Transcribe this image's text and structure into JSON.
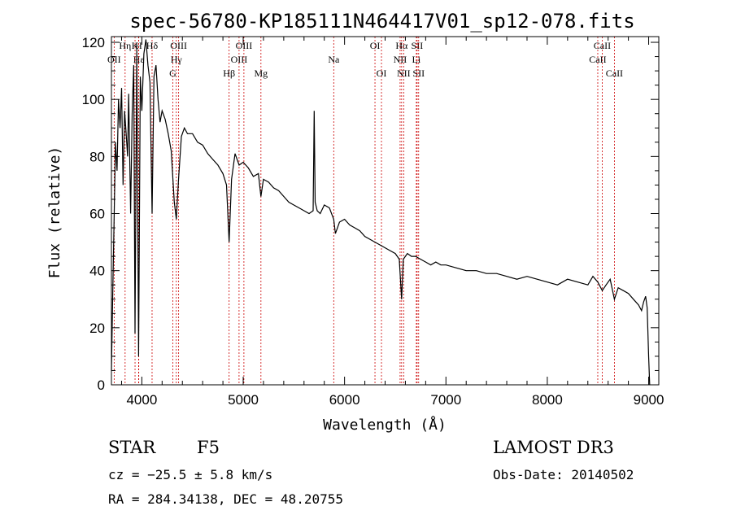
{
  "chart_data": {
    "type": "line",
    "title": "spec-56780-KP185111N464417V01_sp12-078.fits",
    "xlabel": "Wavelength (Å)",
    "ylabel": "Flux (relative)",
    "xlim": [
      3700,
      9100
    ],
    "ylim": [
      0,
      122
    ],
    "x_ticks": [
      4000,
      5000,
      6000,
      7000,
      8000,
      9000
    ],
    "y_ticks": [
      0,
      20,
      40,
      60,
      80,
      100,
      120
    ],
    "series": [
      {
        "name": "flux",
        "x": [
          3700,
          3712,
          3725,
          3740,
          3755,
          3770,
          3785,
          3800,
          3815,
          3830,
          3845,
          3860,
          3870,
          3889,
          3905,
          3920,
          3933,
          3950,
          3968,
          3985,
          4000,
          4020,
          4040,
          4060,
          4080,
          4101,
          4120,
          4140,
          4160,
          4180,
          4200,
          4230,
          4260,
          4290,
          4320,
          4340,
          4360,
          4390,
          4420,
          4450,
          4500,
          4550,
          4600,
          4650,
          4700,
          4750,
          4800,
          4835,
          4861,
          4885,
          4920,
          4960,
          5000,
          5050,
          5100,
          5150,
          5175,
          5200,
          5250,
          5300,
          5350,
          5400,
          5450,
          5500,
          5550,
          5600,
          5650,
          5690,
          5700,
          5710,
          5730,
          5760,
          5800,
          5850,
          5893,
          5910,
          5950,
          6000,
          6050,
          6100,
          6150,
          6200,
          6250,
          6300,
          6350,
          6400,
          6450,
          6500,
          6540,
          6563,
          6580,
          6620,
          6660,
          6700,
          6750,
          6800,
          6850,
          6900,
          6950,
          7000,
          7100,
          7200,
          7300,
          7400,
          7500,
          7600,
          7700,
          7800,
          7900,
          8000,
          8100,
          8200,
          8300,
          8400,
          8450,
          8498,
          8542,
          8580,
          8620,
          8662,
          8700,
          8750,
          8800,
          8850,
          8900,
          8930,
          8950,
          8970,
          8985,
          9000,
          9010
        ],
        "values": [
          5,
          30,
          55,
          85,
          75,
          100,
          90,
          104,
          70,
          96,
          88,
          80,
          102,
          60,
          95,
          112,
          18,
          118,
          10,
          108,
          96,
          116,
          121,
          112,
          106,
          60,
          108,
          112,
          100,
          92,
          96,
          93,
          88,
          82,
          64,
          58,
          71,
          87,
          90,
          88,
          88,
          85,
          84,
          81,
          79,
          77,
          74,
          70,
          50,
          72,
          81,
          77,
          78,
          76,
          73,
          74,
          66,
          72,
          71,
          69,
          68,
          66,
          64,
          63,
          62,
          61,
          60,
          61,
          96,
          64,
          61,
          60,
          63,
          62,
          58,
          53,
          57,
          58,
          56,
          55,
          54,
          52,
          51,
          50,
          49,
          48,
          47,
          46,
          44,
          30,
          44,
          46,
          45,
          45,
          44,
          43,
          42,
          43,
          42,
          42,
          41,
          40,
          40,
          39,
          39,
          38,
          37,
          38,
          37,
          36,
          35,
          37,
          36,
          35,
          38,
          36,
          33,
          35,
          37,
          30,
          34,
          33,
          32,
          30,
          28,
          26,
          29,
          31,
          27,
          10,
          0
        ]
      }
    ],
    "line_markers": [
      {
        "label": "Hα",
        "wavelength": 6563,
        "row": 0
      },
      {
        "label": "Hβ",
        "wavelength": 4861,
        "row": 2
      },
      {
        "label": "Hγ",
        "wavelength": 4340,
        "row": 1
      },
      {
        "label": "Hδ",
        "wavelength": 4101,
        "row": 0
      },
      {
        "label": "Hε",
        "wavelength": 3970,
        "row": 1
      },
      {
        "label": "H",
        "wavelength": 3968,
        "row": 0
      },
      {
        "label": "K",
        "wavelength": 3933,
        "row": 0
      },
      {
        "label": "Hη",
        "wavelength": 3835,
        "row": 0
      },
      {
        "label": "G",
        "wavelength": 4305,
        "row": 2
      },
      {
        "label": "Mg",
        "wavelength": 5175,
        "row": 2
      },
      {
        "label": "Na",
        "wavelength": 5893,
        "row": 1
      },
      {
        "label": "OII",
        "wavelength": 3727,
        "row": 1
      },
      {
        "label": "OIII",
        "wavelength": 4363,
        "row": 0
      },
      {
        "label": "OIII",
        "wavelength": 4959,
        "row": 1
      },
      {
        "label": "OIII",
        "wavelength": 5007,
        "row": 0
      },
      {
        "label": "OI",
        "wavelength": 6300,
        "row": 0
      },
      {
        "label": "OI",
        "wavelength": 6364,
        "row": 2
      },
      {
        "label": "NII",
        "wavelength": 6548,
        "row": 1
      },
      {
        "label": "NII",
        "wavelength": 6583,
        "row": 2
      },
      {
        "label": "SII",
        "wavelength": 6716,
        "row": 0
      },
      {
        "label": "SII",
        "wavelength": 6731,
        "row": 2
      },
      {
        "label": "Li",
        "wavelength": 6708,
        "row": 1
      },
      {
        "label": "CaII",
        "wavelength": 8498,
        "row": 1
      },
      {
        "label": "CaII",
        "wavelength": 8542,
        "row": 0
      },
      {
        "label": "CaII",
        "wavelength": 8662,
        "row": 2
      }
    ]
  },
  "info": {
    "object_type": "STAR",
    "subclass": "F5",
    "survey": "LAMOST DR3",
    "redshift": "cz = −25.5 ± 5.8 km/s",
    "obs_date": "Obs-Date: 20140502",
    "coords": "RA = 284.34138, DEC =  48.20755"
  },
  "colors": {
    "spectrum": "#000000",
    "marker_line": "#cc0000",
    "axis": "#000000"
  }
}
